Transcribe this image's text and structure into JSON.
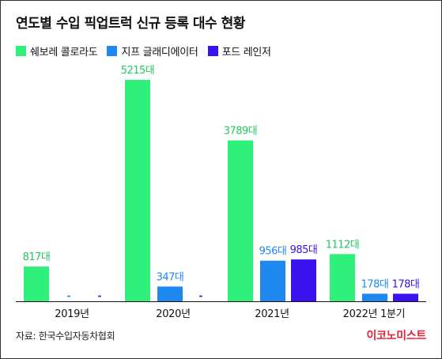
{
  "title": "연도별 수입 픽업트럭 신규 등록 대수 현황",
  "colors": {
    "series_1": "#2ef07a",
    "series_2": "#1e88f0",
    "series_3": "#3a12f0",
    "value_label_1": "#22c95e",
    "value_label_2": "#1e88f0",
    "value_label_3": "#3a12f0",
    "axis": "#111111",
    "brand": "#e8203a"
  },
  "chart_data": {
    "type": "bar",
    "title": "연도별 수입 픽업트럭 신규 등록 대수 현황",
    "categories": [
      "2019년",
      "2020년",
      "2021년",
      "2022년 1분기"
    ],
    "series": [
      {
        "name": "쉐보레 콜로라도",
        "values": [
          817,
          5215,
          3789,
          1112
        ],
        "labels": [
          "817대",
          "5215대",
          "3789대",
          "1112대"
        ]
      },
      {
        "name": "지프 글래디에이터",
        "values": [
          null,
          347,
          956,
          178
        ],
        "labels": [
          "-",
          "347대",
          "956대",
          "178대"
        ]
      },
      {
        "name": "포드 레인저",
        "values": [
          null,
          null,
          985,
          178
        ],
        "labels": [
          "-",
          "-",
          "985대",
          "178대"
        ]
      }
    ],
    "ylim": [
      0,
      5215
    ],
    "grid": false,
    "legend_position": "top-left"
  },
  "source": "자료: 한국수입자동차협회",
  "brand": "이코노미스트"
}
